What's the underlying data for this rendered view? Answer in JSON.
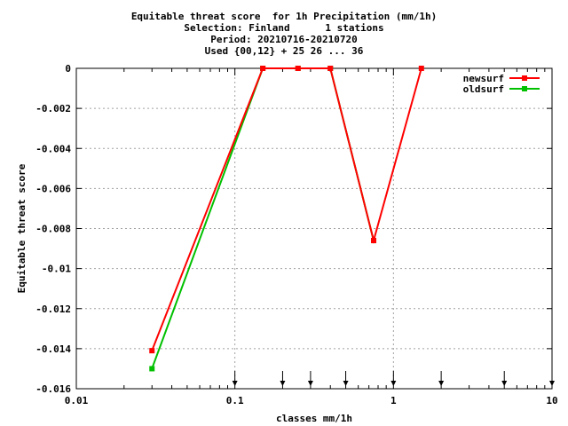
{
  "chart_data": {
    "type": "line",
    "title_lines": [
      "Equitable threat score  for 1h Precipitation (mm/1h)",
      "Selection: Finland      1 stations",
      "Period: 20210716-20210720",
      "Used {00,12} + 25 26 ... 36"
    ],
    "xlabel": "classes mm/1h",
    "ylabel": "Equitable threat score",
    "xscale": "log",
    "xlim": [
      0.01,
      10
    ],
    "ylim": [
      -0.016,
      0
    ],
    "x_ticks": [
      0.01,
      0.1,
      1,
      10
    ],
    "x_tick_labels": [
      "0.01",
      "0.1",
      "1",
      "10"
    ],
    "y_ticks": [
      0,
      -0.002,
      -0.004,
      -0.006,
      -0.008,
      -0.01,
      -0.012,
      -0.014,
      -0.016
    ],
    "y_tick_labels": [
      "0",
      "-0.002",
      "-0.004",
      "-0.006",
      "-0.008",
      "-0.01",
      "-0.012",
      "-0.014",
      "-0.016"
    ],
    "grid": true,
    "legend_position": "top-right",
    "arrow_markers_x": [
      0.1,
      0.2,
      0.3,
      0.5,
      1,
      2,
      5,
      10
    ],
    "series": [
      {
        "name": "newsurf",
        "color": "#ff0000",
        "x": [
          0.03,
          0.15,
          0.25,
          0.4,
          0.75,
          1.5
        ],
        "y": [
          -0.0141,
          0,
          0,
          0,
          -0.0086,
          0
        ]
      },
      {
        "name": "oldsurf",
        "color": "#00c000",
        "x": [
          0.03,
          0.15,
          0.25,
          0.4,
          0.75
        ],
        "y": [
          -0.015,
          0,
          0,
          0,
          -0.0086
        ]
      }
    ]
  }
}
